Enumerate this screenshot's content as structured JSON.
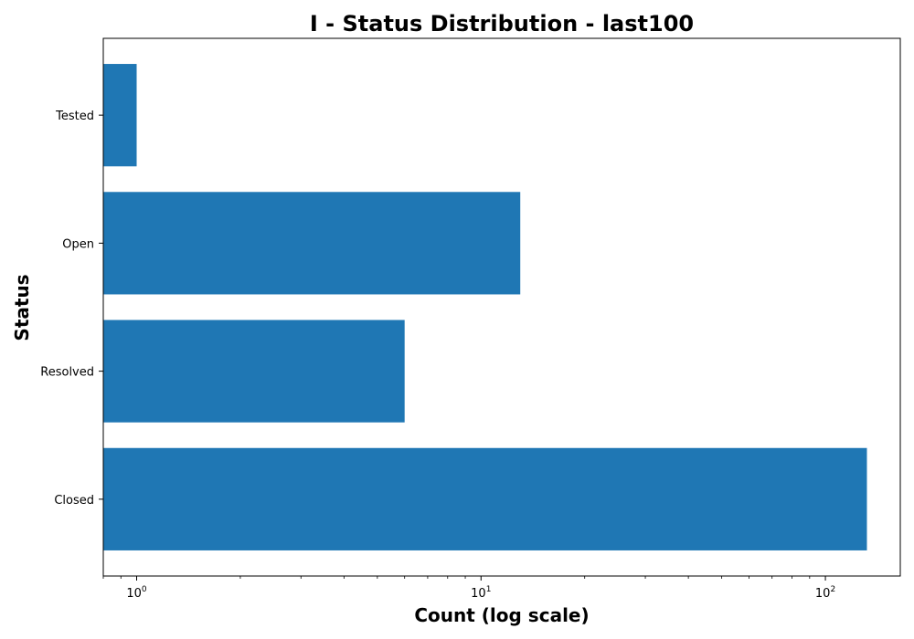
{
  "chart_data": {
    "type": "bar",
    "orientation": "horizontal",
    "title": "I - Status Distribution - last100",
    "xlabel": "Count (log scale)",
    "ylabel": "Status",
    "x_scale": "log",
    "xlim": [
      0.8,
      165
    ],
    "x_ticks": [
      {
        "value": 1,
        "label": "10^0"
      },
      {
        "value": 10,
        "label": "10^1"
      },
      {
        "value": 100,
        "label": "10^2"
      }
    ],
    "categories": [
      "Closed",
      "Resolved",
      "Open",
      "Tested"
    ],
    "values": [
      132,
      6,
      13,
      1
    ],
    "bar_color": "#1f77b4",
    "grid": false,
    "legend": "none"
  }
}
